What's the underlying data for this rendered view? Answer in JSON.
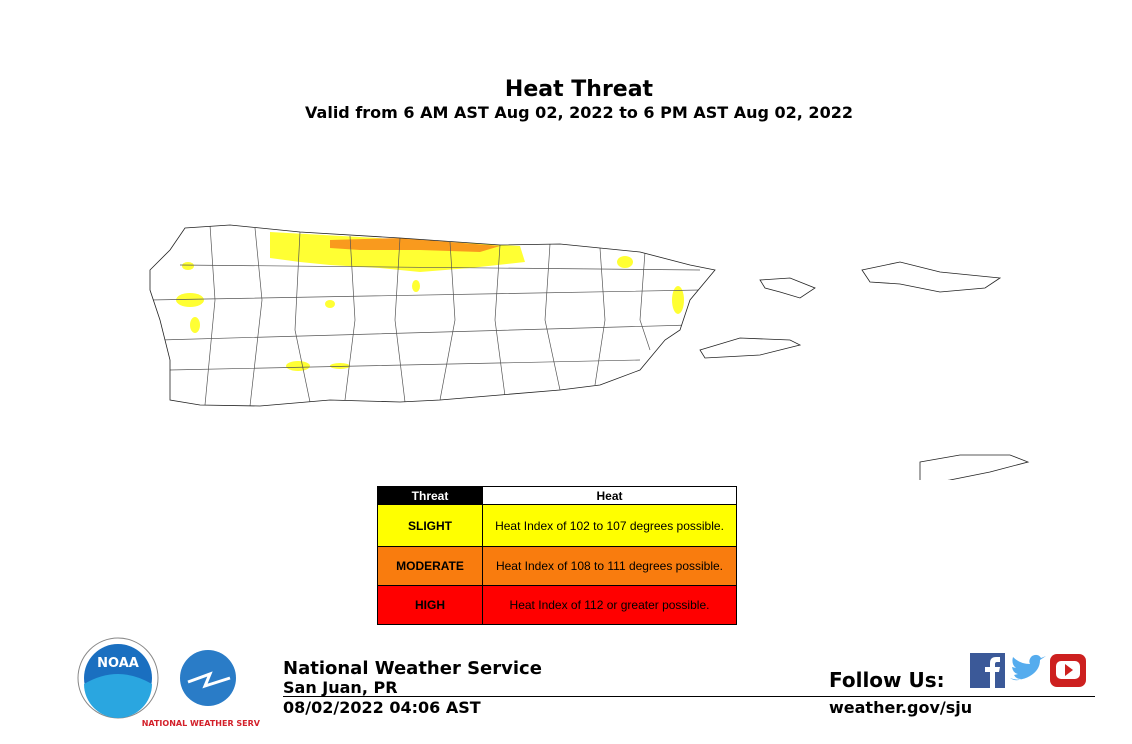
{
  "header": {
    "title": "Heat Threat",
    "subtitle": "Valid from 6 AM AST Aug 02, 2022 to 6 PM AST Aug 02, 2022"
  },
  "legend": {
    "columns": [
      "Threat",
      "Heat"
    ],
    "rows": [
      {
        "level": "SLIGHT",
        "description": "Heat Index of 102 to 107 degrees possible.",
        "color": "#ffff00"
      },
      {
        "level": "MODERATE",
        "description": "Heat Index of 108 to 111 degrees possible.",
        "color": "#f97c0e"
      },
      {
        "level": "HIGH",
        "description": "Heat Index of 112 or greater possible.",
        "color": "#ff0000"
      }
    ]
  },
  "logos": {
    "noaa": "NOAA",
    "nws": "NATIONAL WEATHER SERVICE"
  },
  "footer": {
    "agency": "National Weather Service",
    "office": "San Juan, PR",
    "issued": "08/02/2022 04:06 AST",
    "follow": "Follow Us:",
    "website": "weather.gov/sju"
  }
}
